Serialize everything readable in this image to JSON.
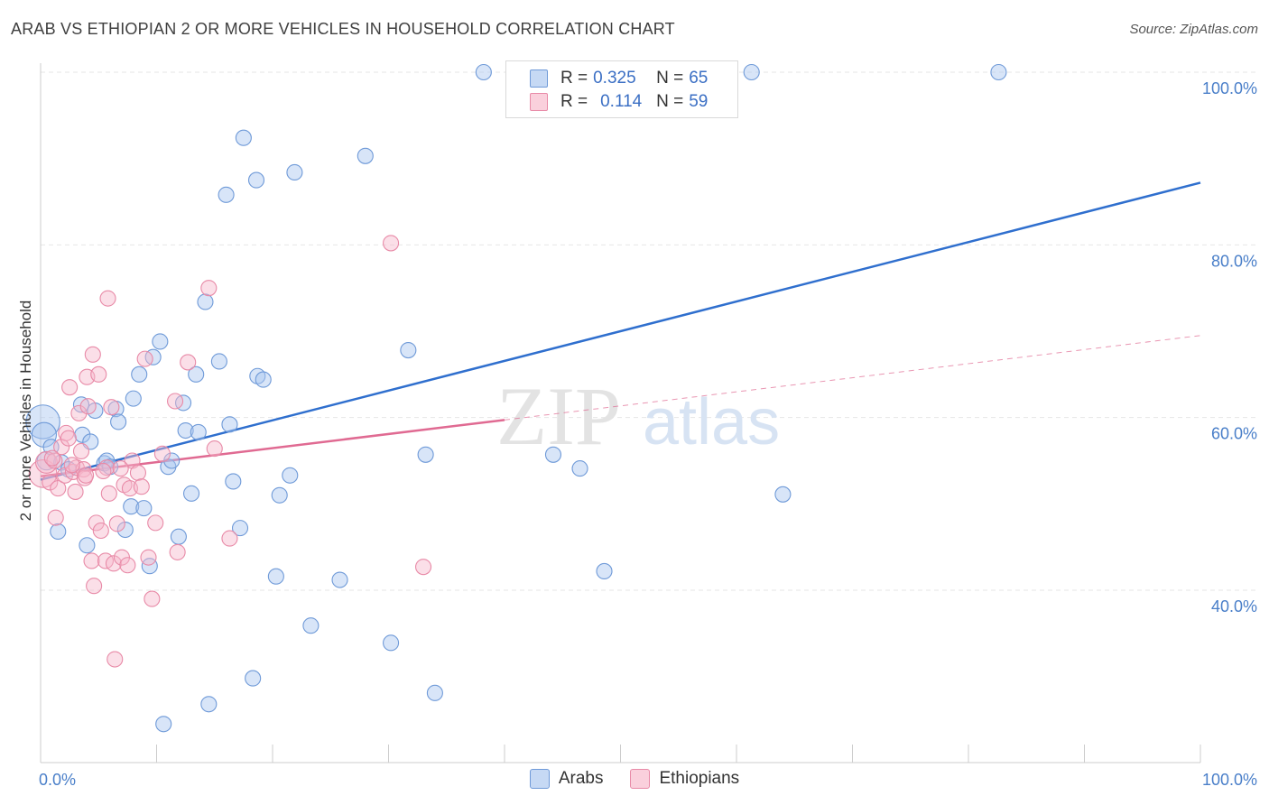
{
  "title": "ARAB VS ETHIOPIAN 2 OR MORE VEHICLES IN HOUSEHOLD CORRELATION CHART",
  "source": "Source: ZipAtlas.com",
  "watermark": {
    "zip": "ZIP",
    "atlas": "atlas"
  },
  "legend": {
    "rows": [
      {
        "r_label": "R =",
        "r_value": "0.325",
        "n_label": "N =",
        "n_value": "65",
        "color": "#a9c6ef",
        "border": "#6f9ad8"
      },
      {
        "r_label": "R =",
        "r_value": "0.114",
        "n_label": "N =",
        "n_value": "59",
        "color": "#f7b8cb",
        "border": "#e88aa7"
      }
    ]
  },
  "bottom_legend": [
    {
      "label": "Arabs",
      "color": "#a9c6ef",
      "border": "#6f9ad8"
    },
    {
      "label": "Ethiopians",
      "color": "#f7b8cb",
      "border": "#e88aa7"
    }
  ],
  "chart_data": {
    "type": "scatter",
    "title": "ARAB VS ETHIOPIAN 2 OR MORE VEHICLES IN HOUSEHOLD CORRELATION CHART",
    "xlabel": "",
    "ylabel": "2 or more Vehicles in Household",
    "xlim": [
      0,
      100
    ],
    "ylim": [
      20,
      102
    ],
    "x_tick_labels": [
      "0.0%",
      "100.0%"
    ],
    "y_ticks": [
      {
        "value": 100,
        "label": "100.0%"
      },
      {
        "value": 80,
        "label": "80.0%"
      },
      {
        "value": 60,
        "label": "60.0%"
      },
      {
        "value": 40,
        "label": "40.0%"
      }
    ],
    "grid": true,
    "series": [
      {
        "name": "Arabs",
        "color": "#a9c6ef",
        "stroke": "#6f9ad8",
        "trend": {
          "x": [
            0,
            100
          ],
          "y": [
            52.8,
            87.2
          ],
          "color": "#2f6fce"
        },
        "points": [
          {
            "x": 0.2,
            "y": 59.5,
            "s": 2.2
          },
          {
            "x": 0.3,
            "y": 58.0,
            "s": 1.6
          },
          {
            "x": 0.5,
            "y": 55.0,
            "s": 1.2
          },
          {
            "x": 1.5,
            "y": 46.8
          },
          {
            "x": 1.8,
            "y": 54.8
          },
          {
            "x": 2.4,
            "y": 54.0
          },
          {
            "x": 3.5,
            "y": 61.5
          },
          {
            "x": 3.6,
            "y": 58.0
          },
          {
            "x": 4.0,
            "y": 45.2
          },
          {
            "x": 4.3,
            "y": 57.2
          },
          {
            "x": 4.7,
            "y": 60.8
          },
          {
            "x": 5.5,
            "y": 54.7
          },
          {
            "x": 5.7,
            "y": 55.0
          },
          {
            "x": 6.0,
            "y": 54.3
          },
          {
            "x": 6.5,
            "y": 61.0
          },
          {
            "x": 6.7,
            "y": 59.5
          },
          {
            "x": 7.3,
            "y": 47.0
          },
          {
            "x": 7.8,
            "y": 49.7
          },
          {
            "x": 8.0,
            "y": 62.2
          },
          {
            "x": 8.5,
            "y": 65.0
          },
          {
            "x": 8.9,
            "y": 49.5
          },
          {
            "x": 9.4,
            "y": 42.8
          },
          {
            "x": 9.7,
            "y": 67.0
          },
          {
            "x": 10.3,
            "y": 68.8
          },
          {
            "x": 10.6,
            "y": 24.5
          },
          {
            "x": 11.0,
            "y": 54.3
          },
          {
            "x": 11.3,
            "y": 55.0
          },
          {
            "x": 11.9,
            "y": 46.2
          },
          {
            "x": 12.3,
            "y": 61.7
          },
          {
            "x": 12.5,
            "y": 58.5
          },
          {
            "x": 13.0,
            "y": 51.2
          },
          {
            "x": 13.4,
            "y": 65.0
          },
          {
            "x": 13.6,
            "y": 58.3
          },
          {
            "x": 14.2,
            "y": 73.4
          },
          {
            "x": 14.5,
            "y": 26.8
          },
          {
            "x": 15.4,
            "y": 66.5
          },
          {
            "x": 16.0,
            "y": 85.8
          },
          {
            "x": 16.3,
            "y": 59.2
          },
          {
            "x": 16.6,
            "y": 52.6
          },
          {
            "x": 17.2,
            "y": 47.2
          },
          {
            "x": 17.5,
            "y": 92.4
          },
          {
            "x": 18.3,
            "y": 29.8
          },
          {
            "x": 18.6,
            "y": 87.5
          },
          {
            "x": 18.7,
            "y": 64.8
          },
          {
            "x": 19.2,
            "y": 64.4
          },
          {
            "x": 20.3,
            "y": 41.6
          },
          {
            "x": 20.6,
            "y": 51.0
          },
          {
            "x": 21.5,
            "y": 53.3
          },
          {
            "x": 21.9,
            "y": 88.4
          },
          {
            "x": 23.3,
            "y": 35.9
          },
          {
            "x": 25.8,
            "y": 41.2
          },
          {
            "x": 28.0,
            "y": 90.3
          },
          {
            "x": 30.2,
            "y": 33.9
          },
          {
            "x": 31.7,
            "y": 67.8
          },
          {
            "x": 33.2,
            "y": 55.7
          },
          {
            "x": 34.0,
            "y": 28.1
          },
          {
            "x": 38.2,
            "y": 100.0
          },
          {
            "x": 44.2,
            "y": 55.7
          },
          {
            "x": 46.5,
            "y": 54.1
          },
          {
            "x": 47.3,
            "y": 100.0
          },
          {
            "x": 48.6,
            "y": 42.2
          },
          {
            "x": 61.3,
            "y": 100.0
          },
          {
            "x": 64.0,
            "y": 51.1
          },
          {
            "x": 82.6,
            "y": 100.0
          },
          {
            "x": 0.9,
            "y": 56.6
          }
        ]
      },
      {
        "name": "Ethiopians",
        "color": "#f7b8cb",
        "stroke": "#e88aa7",
        "trend": {
          "x": [
            0,
            100
          ],
          "y": [
            53.2,
            69.5
          ],
          "solid_until": 40,
          "color": "#e06a92"
        },
        "points": [
          {
            "x": 0.2,
            "y": 53.5,
            "s": 1.8
          },
          {
            "x": 0.5,
            "y": 54.8,
            "s": 1.4
          },
          {
            "x": 0.8,
            "y": 52.5
          },
          {
            "x": 1.2,
            "y": 55.0
          },
          {
            "x": 1.3,
            "y": 48.4
          },
          {
            "x": 1.5,
            "y": 51.8
          },
          {
            "x": 1.8,
            "y": 56.6
          },
          {
            "x": 2.1,
            "y": 53.3
          },
          {
            "x": 2.2,
            "y": 58.2
          },
          {
            "x": 2.5,
            "y": 63.5
          },
          {
            "x": 2.8,
            "y": 53.7
          },
          {
            "x": 3.0,
            "y": 51.4
          },
          {
            "x": 3.1,
            "y": 54.2
          },
          {
            "x": 3.3,
            "y": 60.5
          },
          {
            "x": 3.5,
            "y": 56.1
          },
          {
            "x": 3.7,
            "y": 54.0
          },
          {
            "x": 3.8,
            "y": 53.0
          },
          {
            "x": 4.0,
            "y": 64.7
          },
          {
            "x": 4.1,
            "y": 61.3
          },
          {
            "x": 4.4,
            "y": 43.4
          },
          {
            "x": 4.5,
            "y": 67.3
          },
          {
            "x": 4.6,
            "y": 40.5
          },
          {
            "x": 4.8,
            "y": 47.8
          },
          {
            "x": 5.0,
            "y": 65.0
          },
          {
            "x": 5.2,
            "y": 46.9
          },
          {
            "x": 5.6,
            "y": 43.4
          },
          {
            "x": 5.7,
            "y": 54.2
          },
          {
            "x": 5.8,
            "y": 73.8
          },
          {
            "x": 5.9,
            "y": 51.2
          },
          {
            "x": 6.1,
            "y": 61.2
          },
          {
            "x": 6.3,
            "y": 43.1
          },
          {
            "x": 6.4,
            "y": 32.0
          },
          {
            "x": 6.6,
            "y": 47.7
          },
          {
            "x": 7.0,
            "y": 43.8
          },
          {
            "x": 7.2,
            "y": 52.2
          },
          {
            "x": 7.5,
            "y": 42.9
          },
          {
            "x": 7.7,
            "y": 51.8
          },
          {
            "x": 7.9,
            "y": 55.0
          },
          {
            "x": 8.4,
            "y": 53.6
          },
          {
            "x": 8.7,
            "y": 52.0
          },
          {
            "x": 9.0,
            "y": 66.8
          },
          {
            "x": 9.3,
            "y": 43.8
          },
          {
            "x": 9.6,
            "y": 39.0
          },
          {
            "x": 9.9,
            "y": 47.8
          },
          {
            "x": 10.5,
            "y": 55.8
          },
          {
            "x": 11.6,
            "y": 61.9
          },
          {
            "x": 11.8,
            "y": 44.4
          },
          {
            "x": 12.7,
            "y": 66.4
          },
          {
            "x": 14.5,
            "y": 75.0
          },
          {
            "x": 15.0,
            "y": 56.4
          },
          {
            "x": 16.3,
            "y": 46.0
          },
          {
            "x": 30.2,
            "y": 80.2
          },
          {
            "x": 33.0,
            "y": 42.7
          },
          {
            "x": 2.7,
            "y": 54.5
          },
          {
            "x": 1.0,
            "y": 55.3
          },
          {
            "x": 5.4,
            "y": 53.8
          },
          {
            "x": 3.9,
            "y": 53.3
          },
          {
            "x": 6.9,
            "y": 54.1
          },
          {
            "x": 2.4,
            "y": 57.6
          }
        ]
      }
    ]
  }
}
